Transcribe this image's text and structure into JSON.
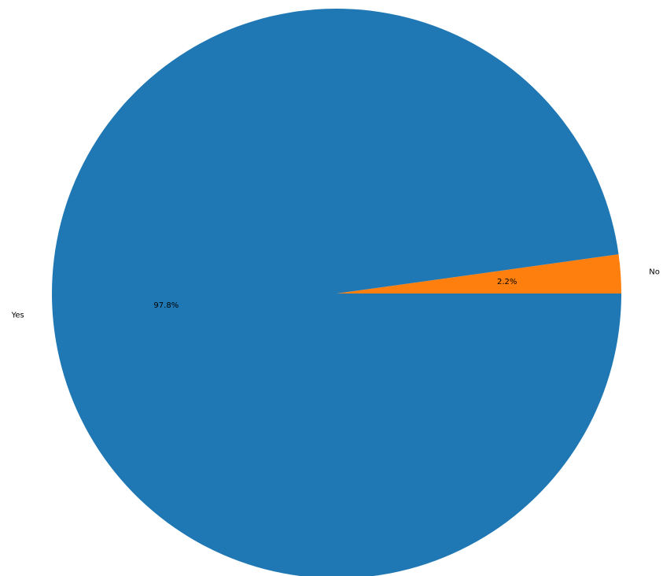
{
  "chart_data": {
    "type": "pie",
    "categories": [
      "No",
      "Yes"
    ],
    "values": [
      2.2,
      97.8
    ],
    "percent_labels": [
      "2.2%",
      "97.8%"
    ],
    "colors": [
      "#ff7f0e",
      "#1f77b4"
    ],
    "start_angle": 0,
    "direction": "counterclockwise",
    "legend": "none"
  }
}
